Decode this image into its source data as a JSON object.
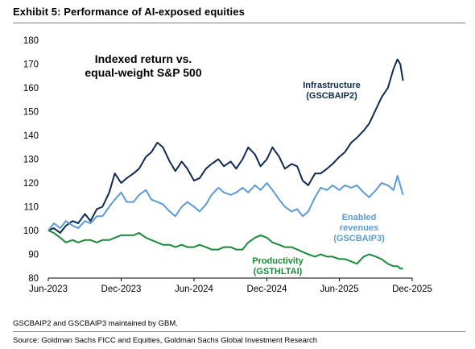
{
  "exhibit": {
    "title": "Exhibit 5: Performance of AI-exposed equities",
    "footnote": "GSCBAIP2 and GSCBAIP3 maintained by GBM.",
    "source": "Source: Goldman Sachs FICC and Equities, Goldman Sachs Global Investment Research"
  },
  "chart_data": {
    "type": "line",
    "inset_title": [
      "Indexed return vs.",
      "equal-weight S&P 500"
    ],
    "xlabel": "",
    "ylabel": "",
    "ylim": [
      80,
      180
    ],
    "yticks": [
      80,
      90,
      100,
      110,
      120,
      130,
      140,
      150,
      160,
      170,
      180
    ],
    "xlim": [
      "2023-06",
      "2025-12"
    ],
    "xticks": [
      {
        "label": "Jun-2023",
        "date": "2023-06"
      },
      {
        "label": "Dec-2023",
        "date": "2023-12"
      },
      {
        "label": "Jun-2024",
        "date": "2024-06"
      },
      {
        "label": "Dec-2024",
        "date": "2024-12"
      },
      {
        "label": "Jun-2025",
        "date": "2025-06"
      },
      {
        "label": "Dec-2025",
        "date": "2025-12"
      }
    ],
    "grid": false,
    "series": [
      {
        "name": "Infrastructure (GSCBAIP2)",
        "label_lines": [
          "Infrastructure",
          "(GSCBAIP2)"
        ],
        "color": "#0d2b52",
        "points": [
          [
            "2023-06-01",
            100
          ],
          [
            "2023-06-15",
            101
          ],
          [
            "2023-07-01",
            99
          ],
          [
            "2023-07-15",
            102
          ],
          [
            "2023-08-01",
            104
          ],
          [
            "2023-08-15",
            103
          ],
          [
            "2023-09-01",
            107
          ],
          [
            "2023-09-15",
            104
          ],
          [
            "2023-10-01",
            109
          ],
          [
            "2023-10-15",
            110
          ],
          [
            "2023-11-01",
            116
          ],
          [
            "2023-11-15",
            124
          ],
          [
            "2023-12-01",
            120
          ],
          [
            "2023-12-15",
            122
          ],
          [
            "2024-01-01",
            124
          ],
          [
            "2024-01-15",
            126
          ],
          [
            "2024-02-01",
            131
          ],
          [
            "2024-02-15",
            133
          ],
          [
            "2024-03-01",
            137
          ],
          [
            "2024-03-15",
            135
          ],
          [
            "2024-04-01",
            129
          ],
          [
            "2024-04-15",
            125
          ],
          [
            "2024-05-01",
            129
          ],
          [
            "2024-05-15",
            126
          ],
          [
            "2024-06-01",
            121
          ],
          [
            "2024-06-15",
            122
          ],
          [
            "2024-07-01",
            126
          ],
          [
            "2024-07-15",
            128
          ],
          [
            "2024-08-01",
            130
          ],
          [
            "2024-08-15",
            127
          ],
          [
            "2024-09-01",
            129
          ],
          [
            "2024-09-15",
            126
          ],
          [
            "2024-10-01",
            130
          ],
          [
            "2024-10-15",
            135
          ],
          [
            "2024-11-01",
            132
          ],
          [
            "2024-11-15",
            127
          ],
          [
            "2024-12-01",
            130
          ],
          [
            "2024-12-15",
            135
          ],
          [
            "2025-01-01",
            131
          ],
          [
            "2025-01-15",
            126
          ],
          [
            "2025-02-01",
            128
          ],
          [
            "2025-02-15",
            127
          ],
          [
            "2025-03-01",
            121
          ],
          [
            "2025-03-15",
            119
          ],
          [
            "2025-04-01",
            124
          ],
          [
            "2025-04-15",
            124
          ],
          [
            "2025-05-01",
            126
          ],
          [
            "2025-05-15",
            128
          ],
          [
            "2025-06-01",
            131
          ],
          [
            "2025-06-15",
            133
          ],
          [
            "2025-07-01",
            137
          ],
          [
            "2025-07-15",
            139
          ],
          [
            "2025-08-01",
            142
          ],
          [
            "2025-08-15",
            145
          ],
          [
            "2025-09-01",
            151
          ],
          [
            "2025-09-15",
            156
          ],
          [
            "2025-10-01",
            160
          ],
          [
            "2025-10-15",
            168
          ],
          [
            "2025-10-25",
            172
          ],
          [
            "2025-11-01",
            170
          ],
          [
            "2025-11-08",
            163
          ]
        ]
      },
      {
        "name": "Enabled revenues (GSCBAIP3)",
        "label_lines": [
          "Enabled",
          "revenues",
          "(GSCBAIP3)"
        ],
        "color": "#5b9bd5",
        "points": [
          [
            "2023-06-01",
            100
          ],
          [
            "2023-06-15",
            103
          ],
          [
            "2023-07-01",
            101
          ],
          [
            "2023-07-15",
            104
          ],
          [
            "2023-08-01",
            102
          ],
          [
            "2023-08-15",
            101
          ],
          [
            "2023-09-01",
            104
          ],
          [
            "2023-09-15",
            103
          ],
          [
            "2023-10-01",
            106
          ],
          [
            "2023-10-15",
            106
          ],
          [
            "2023-11-01",
            110
          ],
          [
            "2023-11-15",
            113
          ],
          [
            "2023-12-01",
            116
          ],
          [
            "2023-12-15",
            112
          ],
          [
            "2024-01-01",
            112
          ],
          [
            "2024-01-15",
            115
          ],
          [
            "2024-02-01",
            117
          ],
          [
            "2024-02-15",
            113
          ],
          [
            "2024-03-01",
            112
          ],
          [
            "2024-03-15",
            111
          ],
          [
            "2024-04-01",
            108
          ],
          [
            "2024-04-15",
            106
          ],
          [
            "2024-05-01",
            110
          ],
          [
            "2024-05-15",
            112
          ],
          [
            "2024-06-01",
            110
          ],
          [
            "2024-06-15",
            108
          ],
          [
            "2024-07-01",
            111
          ],
          [
            "2024-07-15",
            115
          ],
          [
            "2024-08-01",
            118
          ],
          [
            "2024-08-15",
            116
          ],
          [
            "2024-09-01",
            115
          ],
          [
            "2024-09-15",
            116
          ],
          [
            "2024-10-01",
            118
          ],
          [
            "2024-10-15",
            116
          ],
          [
            "2024-11-01",
            119
          ],
          [
            "2024-11-15",
            117
          ],
          [
            "2024-12-01",
            120
          ],
          [
            "2024-12-15",
            117
          ],
          [
            "2025-01-01",
            113
          ],
          [
            "2025-01-15",
            110
          ],
          [
            "2025-02-01",
            108
          ],
          [
            "2025-02-15",
            109
          ],
          [
            "2025-03-01",
            106
          ],
          [
            "2025-03-15",
            108
          ],
          [
            "2025-04-01",
            114
          ],
          [
            "2025-04-15",
            118
          ],
          [
            "2025-05-01",
            117
          ],
          [
            "2025-05-15",
            119
          ],
          [
            "2025-06-01",
            117
          ],
          [
            "2025-06-15",
            119
          ],
          [
            "2025-07-01",
            118
          ],
          [
            "2025-07-15",
            119
          ],
          [
            "2025-08-01",
            116
          ],
          [
            "2025-08-15",
            114
          ],
          [
            "2025-09-01",
            117
          ],
          [
            "2025-09-15",
            120
          ],
          [
            "2025-10-01",
            119
          ],
          [
            "2025-10-15",
            117
          ],
          [
            "2025-10-25",
            123
          ],
          [
            "2025-11-01",
            119
          ],
          [
            "2025-11-08",
            115
          ]
        ]
      },
      {
        "name": "Productivity (GSTHLTAI)",
        "label_lines": [
          "Productivity",
          "(GSTHLTAI)"
        ],
        "color": "#1b8a3a",
        "points": [
          [
            "2023-06-01",
            100
          ],
          [
            "2023-06-15",
            99
          ],
          [
            "2023-07-01",
            97
          ],
          [
            "2023-07-15",
            95
          ],
          [
            "2023-08-01",
            96
          ],
          [
            "2023-08-15",
            95
          ],
          [
            "2023-09-01",
            96
          ],
          [
            "2023-09-15",
            96
          ],
          [
            "2023-10-01",
            95
          ],
          [
            "2023-10-15",
            96
          ],
          [
            "2023-11-01",
            96
          ],
          [
            "2023-11-15",
            97
          ],
          [
            "2023-12-01",
            98
          ],
          [
            "2023-12-15",
            98
          ],
          [
            "2024-01-01",
            98
          ],
          [
            "2024-01-15",
            99
          ],
          [
            "2024-02-01",
            97
          ],
          [
            "2024-02-15",
            96
          ],
          [
            "2024-03-01",
            95
          ],
          [
            "2024-03-15",
            94
          ],
          [
            "2024-04-01",
            94
          ],
          [
            "2024-04-15",
            93
          ],
          [
            "2024-05-01",
            94
          ],
          [
            "2024-05-15",
            93
          ],
          [
            "2024-06-01",
            93
          ],
          [
            "2024-06-15",
            94
          ],
          [
            "2024-07-01",
            93
          ],
          [
            "2024-07-15",
            92
          ],
          [
            "2024-08-01",
            92
          ],
          [
            "2024-08-15",
            93
          ],
          [
            "2024-09-01",
            93
          ],
          [
            "2024-09-15",
            92
          ],
          [
            "2024-10-01",
            92
          ],
          [
            "2024-10-15",
            95
          ],
          [
            "2024-11-01",
            97
          ],
          [
            "2024-11-15",
            98
          ],
          [
            "2024-12-01",
            97
          ],
          [
            "2024-12-15",
            95
          ],
          [
            "2025-01-01",
            94
          ],
          [
            "2025-01-15",
            93
          ],
          [
            "2025-02-01",
            93
          ],
          [
            "2025-02-15",
            92
          ],
          [
            "2025-03-01",
            91
          ],
          [
            "2025-03-15",
            90
          ],
          [
            "2025-04-01",
            89
          ],
          [
            "2025-04-15",
            90
          ],
          [
            "2025-05-01",
            89
          ],
          [
            "2025-05-15",
            89
          ],
          [
            "2025-06-01",
            88
          ],
          [
            "2025-06-15",
            88
          ],
          [
            "2025-07-01",
            87
          ],
          [
            "2025-07-15",
            86
          ],
          [
            "2025-08-01",
            89
          ],
          [
            "2025-08-15",
            90
          ],
          [
            "2025-09-01",
            89
          ],
          [
            "2025-09-15",
            88
          ],
          [
            "2025-10-01",
            86
          ],
          [
            "2025-10-15",
            85
          ],
          [
            "2025-10-25",
            85
          ],
          [
            "2025-11-01",
            84
          ],
          [
            "2025-11-08",
            84
          ]
        ]
      }
    ]
  }
}
